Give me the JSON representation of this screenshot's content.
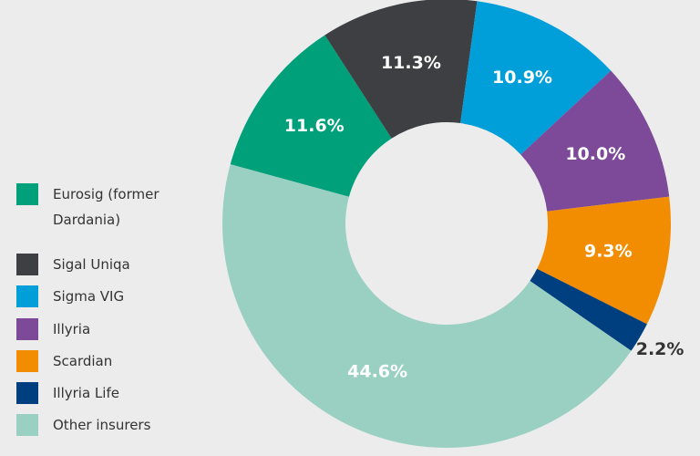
{
  "chart_data": {
    "type": "donut",
    "categories": [
      "Eurosig (former Dardania)",
      "Sigal Uniqa",
      "Sigma VIG",
      "Illyria",
      "Scardian",
      "Illyria Life",
      "Other insurers"
    ],
    "values": [
      11.6,
      11.3,
      10.9,
      10.0,
      9.3,
      2.2,
      44.6
    ],
    "value_labels": [
      "11.6%",
      "11.3%",
      "10.9%",
      "10.0%",
      "9.3%",
      "2.2%",
      "44.6%"
    ],
    "colors": [
      "#00a07a",
      "#3d3f42",
      "#009fd9",
      "#7d4a9a",
      "#f28c00",
      "#003f7f",
      "#9ad0c2"
    ],
    "legend": "left"
  }
}
